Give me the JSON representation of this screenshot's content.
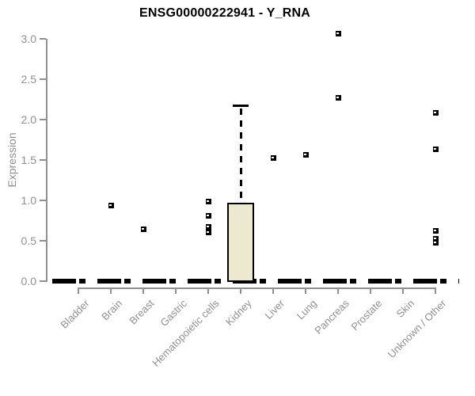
{
  "chart_data": {
    "type": "boxplot",
    "title": "ENSG00000222941 - Y_RNA",
    "ylabel": "Expression",
    "xlabel": "",
    "ylim": [
      0.0,
      3.0
    ],
    "yticks": [
      0.0,
      0.5,
      1.0,
      1.5,
      2.0,
      2.5,
      3.0
    ],
    "grid": false,
    "legend": false,
    "x_label_rotation_deg": 45,
    "zero_line_dashed": true,
    "categories": [
      "Bladder",
      "Brain",
      "Breast",
      "Gastric",
      "Hematopoietic cells",
      "Kidney",
      "Liver",
      "Lung",
      "Pancreas",
      "Prostate",
      "Skin",
      "Unknown / Other"
    ],
    "series": [
      {
        "category": "Bladder",
        "q1": 0.0,
        "median": 0.0,
        "q3": 0.0,
        "whisker_low": 0.0,
        "whisker_high": 0.0,
        "outliers": []
      },
      {
        "category": "Brain",
        "q1": 0.0,
        "median": 0.0,
        "q3": 0.0,
        "whisker_low": 0.0,
        "whisker_high": 0.0,
        "outliers": [
          0.94
        ]
      },
      {
        "category": "Breast",
        "q1": 0.0,
        "median": 0.0,
        "q3": 0.0,
        "whisker_low": 0.0,
        "whisker_high": 0.0,
        "outliers": [
          0.64
        ]
      },
      {
        "category": "Gastric",
        "q1": 0.0,
        "median": 0.0,
        "q3": 0.0,
        "whisker_low": 0.0,
        "whisker_high": 0.0,
        "outliers": []
      },
      {
        "category": "Hematopoietic cells",
        "q1": 0.0,
        "median": 0.0,
        "q3": 0.0,
        "whisker_low": 0.0,
        "whisker_high": 0.0,
        "outliers": [
          0.99,
          0.81,
          0.67,
          0.6
        ]
      },
      {
        "category": "Kidney",
        "q1": 0.0,
        "median": 0.0,
        "q3": 0.97,
        "whisker_low": 0.0,
        "whisker_high": 2.17,
        "outliers": []
      },
      {
        "category": "Liver",
        "q1": 0.0,
        "median": 0.0,
        "q3": 0.0,
        "whisker_low": 0.0,
        "whisker_high": 0.0,
        "outliers": [
          1.52
        ]
      },
      {
        "category": "Lung",
        "q1": 0.0,
        "median": 0.0,
        "q3": 0.0,
        "whisker_low": 0.0,
        "whisker_high": 0.0,
        "outliers": [
          1.56
        ]
      },
      {
        "category": "Pancreas",
        "q1": 0.0,
        "median": 0.0,
        "q3": 0.0,
        "whisker_low": 0.0,
        "whisker_high": 0.0,
        "outliers": [
          3.06,
          2.27
        ]
      },
      {
        "category": "Prostate",
        "q1": 0.0,
        "median": 0.0,
        "q3": 0.0,
        "whisker_low": 0.0,
        "whisker_high": 0.0,
        "outliers": []
      },
      {
        "category": "Skin",
        "q1": 0.0,
        "median": 0.0,
        "q3": 0.0,
        "whisker_low": 0.0,
        "whisker_high": 0.0,
        "outliers": []
      },
      {
        "category": "Unknown / Other",
        "q1": 0.0,
        "median": 0.0,
        "q3": 0.0,
        "whisker_low": 0.0,
        "whisker_high": 0.0,
        "outliers": [
          2.08,
          1.63,
          0.62,
          0.52,
          0.48
        ]
      }
    ],
    "colors": {
      "box_fill": "#EDE9CF",
      "box_border": "#000000",
      "point": "#000000",
      "whisker": "#000000",
      "axis": "#909090",
      "tick_label": "#909090",
      "title": "#000000",
      "background": "#FFFFFF"
    }
  }
}
